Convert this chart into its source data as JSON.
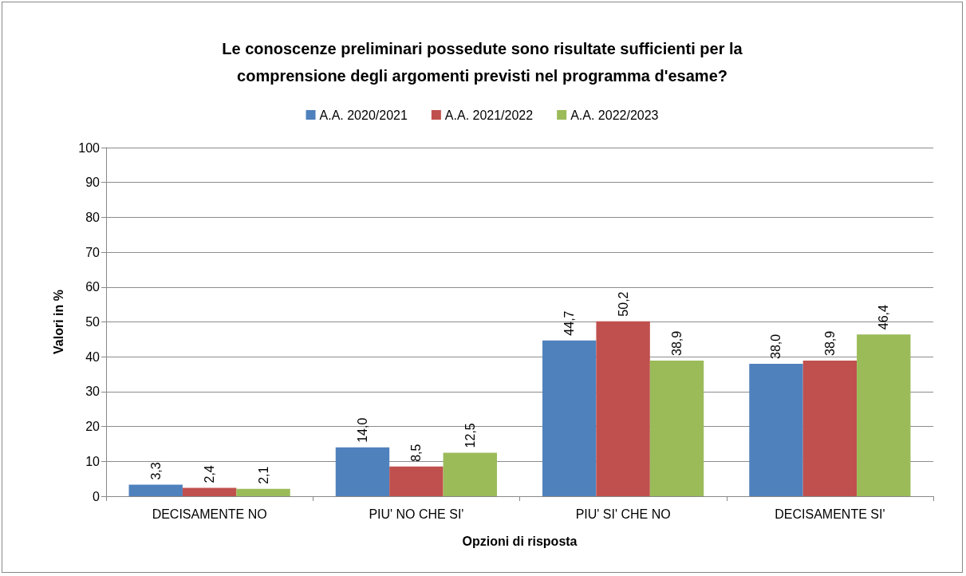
{
  "chart_data": {
    "type": "bar",
    "title": "Le conoscenze preliminari possedute sono risultate sufficienti per la\ncomprensione degli argomenti previsti nel programma d'esame?",
    "xlabel": "Opzioni di risposta",
    "ylabel": "Valori in %",
    "categories": [
      "DECISAMENTE NO",
      "PIU' NO CHE SI'",
      "PIU' SI' CHE NO",
      "DECISAMENTE SI'"
    ],
    "series": [
      {
        "name": "A.A. 2020/2021",
        "color": "#4f81bd",
        "values": [
          3.3,
          14.0,
          44.7,
          38.0
        ],
        "value_labels": [
          "3,3",
          "14,0",
          "44,7",
          "38,0"
        ]
      },
      {
        "name": "A.A. 2021/2022",
        "color": "#c0504d",
        "values": [
          2.4,
          8.5,
          50.2,
          38.9
        ],
        "value_labels": [
          "2,4",
          "8,5",
          "50,2",
          "38,9"
        ]
      },
      {
        "name": "A.A. 2022/2023",
        "color": "#9bbb59",
        "values": [
          2.1,
          12.5,
          38.9,
          46.4
        ],
        "value_labels": [
          "2,1",
          "12,5",
          "38,9",
          "46,4"
        ]
      }
    ],
    "ylim": [
      0,
      100
    ],
    "yticks": [
      0,
      10,
      20,
      30,
      40,
      50,
      60,
      70,
      80,
      90,
      100
    ],
    "grid": "y",
    "legend": "top"
  }
}
